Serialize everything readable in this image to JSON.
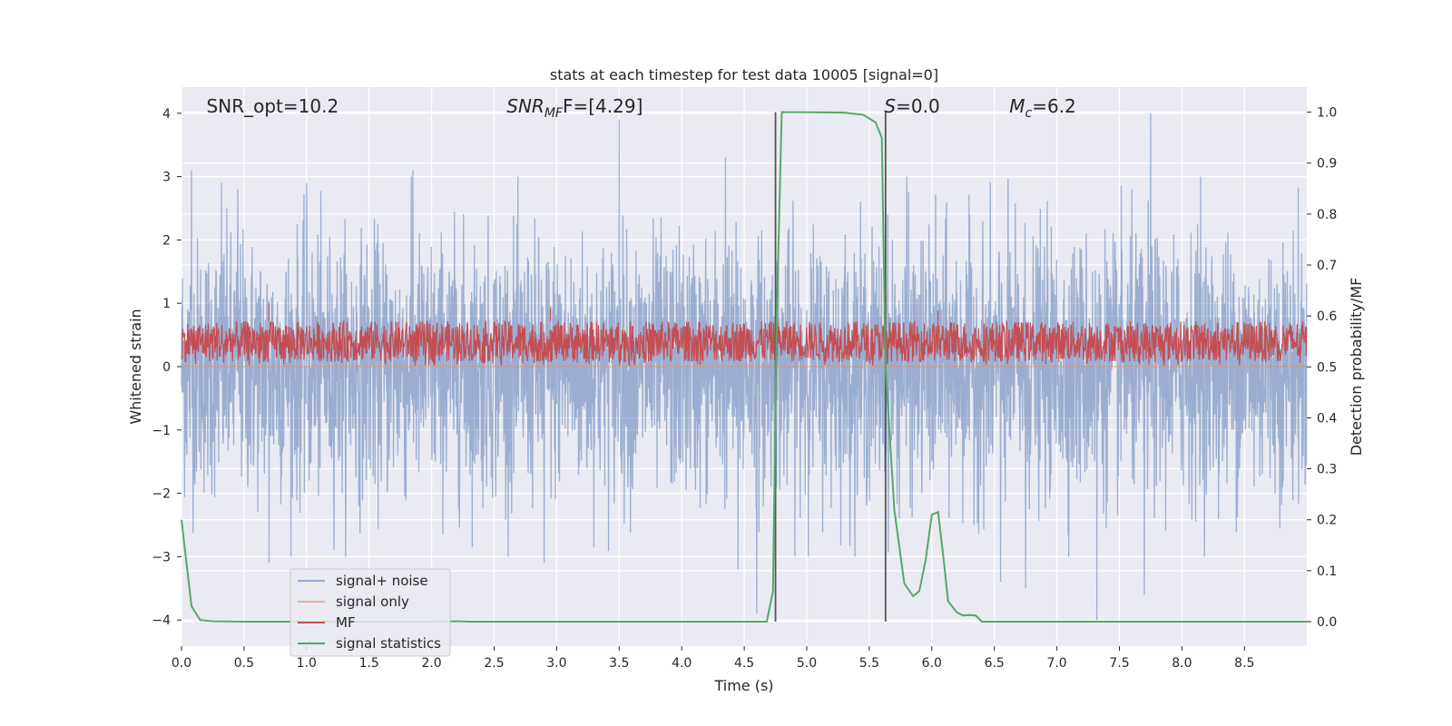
{
  "chart_data": {
    "type": "line",
    "title": "stats at each timestep for test data 10005 [signal=0]",
    "xlabel": "Time (s)",
    "ylabel_left": "Whitened strain",
    "ylabel_right": "Detection probability/MF",
    "xlim": [
      0,
      9.0
    ],
    "ylim_left": [
      -4.4,
      4.4
    ],
    "ylim_right": [
      -0.04,
      1.04
    ],
    "x_ticks": [
      0.0,
      0.5,
      1.0,
      1.5,
      2.0,
      2.5,
      3.0,
      3.5,
      4.0,
      4.5,
      5.0,
      5.5,
      6.0,
      6.5,
      7.0,
      7.5,
      8.0,
      8.5
    ],
    "x_tick_labels": [
      "0.0",
      "0.5",
      "1.0",
      "1.5",
      "2.0",
      "2.5",
      "3.0",
      "3.5",
      "4.0",
      "4.5",
      "5.0",
      "5.5",
      "6.0",
      "6.5",
      "7.0",
      "7.5",
      "8.0",
      "8.5"
    ],
    "y_ticks_left": [
      -4,
      -3,
      -2,
      -1,
      0,
      1,
      2,
      3,
      4
    ],
    "y_tick_labels_left": [
      "−4",
      "−3",
      "−2",
      "−1",
      "0",
      "1",
      "2",
      "3",
      "4"
    ],
    "y_ticks_right": [
      0.0,
      0.1,
      0.2,
      0.3,
      0.4,
      0.5,
      0.6,
      0.7,
      0.8,
      0.9,
      1.0
    ],
    "y_tick_labels_right": [
      "0.0",
      "0.1",
      "0.2",
      "0.3",
      "0.4",
      "0.5",
      "0.6",
      "0.7",
      "0.8",
      "0.9",
      "1.0"
    ],
    "grid": true,
    "legend_placement": "lower-left",
    "annotations": {
      "snr_opt": {
        "text": "SNR_opt=10.2",
        "x": 0.2
      },
      "snr_mf": {
        "text": "SNR",
        "sub": "MF",
        "rest": "F=[4.29]",
        "x": 2.6
      },
      "s": {
        "text": "S",
        "rest": "=0.0",
        "x": 5.62
      },
      "mc": {
        "text": "M",
        "sub": "c",
        "rest": "=6.2",
        "x": 6.62
      }
    },
    "vertical_lines": [
      4.75,
      5.63
    ],
    "series": [
      {
        "name": "signal+ noise",
        "axis": "left",
        "color": "#4c72b0",
        "description": "noise",
        "sample_rate": 400,
        "spread": 1.0,
        "peaks": [
          [
            0.08,
            3.1
          ],
          [
            0.32,
            2.9
          ],
          [
            0.45,
            2.8
          ],
          [
            1.0,
            2.9
          ],
          [
            1.85,
            3.1
          ],
          [
            3.5,
            3.9
          ],
          [
            4.35,
            3.3
          ],
          [
            5.8,
            3.0
          ],
          [
            7.75,
            4.0
          ],
          [
            8.15,
            3.0
          ],
          [
            4.6,
            -3.9
          ],
          [
            4.45,
            -3.2
          ],
          [
            6.75,
            -3.5
          ],
          [
            7.32,
            -4.0
          ],
          [
            7.7,
            -3.6
          ],
          [
            2.9,
            -3.1
          ],
          [
            0.7,
            -3.1
          ],
          [
            6.55,
            -3.4
          ]
        ]
      },
      {
        "name": "signal only",
        "axis": "left",
        "color": "#dd8452",
        "x": [
          0.0,
          9.0
        ],
        "y": [
          0.0,
          0.0
        ]
      },
      {
        "name": "MF",
        "axis": "right",
        "color": "#c44e52",
        "band": [
          0.51,
          0.59
        ],
        "spikes": [
          [
            0.7,
            0.625
          ],
          [
            2.95,
            0.615
          ],
          [
            6.05,
            0.61
          ]
        ]
      },
      {
        "name": "signal statistics",
        "axis": "right",
        "color": "#55a868",
        "x": [
          0.0,
          0.08,
          0.15,
          0.25,
          0.5,
          1.0,
          1.5,
          2.0,
          2.2,
          2.3,
          3.0,
          4.0,
          4.5,
          4.68,
          4.73,
          4.76,
          4.8,
          5.0,
          5.3,
          5.45,
          5.55,
          5.6,
          5.63,
          5.7,
          5.78,
          5.85,
          5.9,
          5.95,
          6.0,
          6.05,
          6.1,
          6.13,
          6.2,
          6.25,
          6.3,
          6.35,
          6.4,
          6.5,
          6.6,
          6.7,
          7.0,
          8.0,
          9.0
        ],
        "y": [
          0.2,
          0.03,
          0.003,
          0.001,
          0.0,
          0.0,
          0.0,
          0.0,
          0.001,
          0.0,
          0.0,
          0.0,
          0.0,
          0.0,
          0.06,
          0.6,
          1.0,
          1.0,
          0.999,
          0.995,
          0.98,
          0.95,
          0.5,
          0.22,
          0.075,
          0.05,
          0.06,
          0.12,
          0.21,
          0.215,
          0.11,
          0.04,
          0.018,
          0.012,
          0.013,
          0.012,
          0.0,
          0.0,
          0.0,
          0.0,
          0.0,
          0.0,
          0.0
        ]
      }
    ]
  }
}
